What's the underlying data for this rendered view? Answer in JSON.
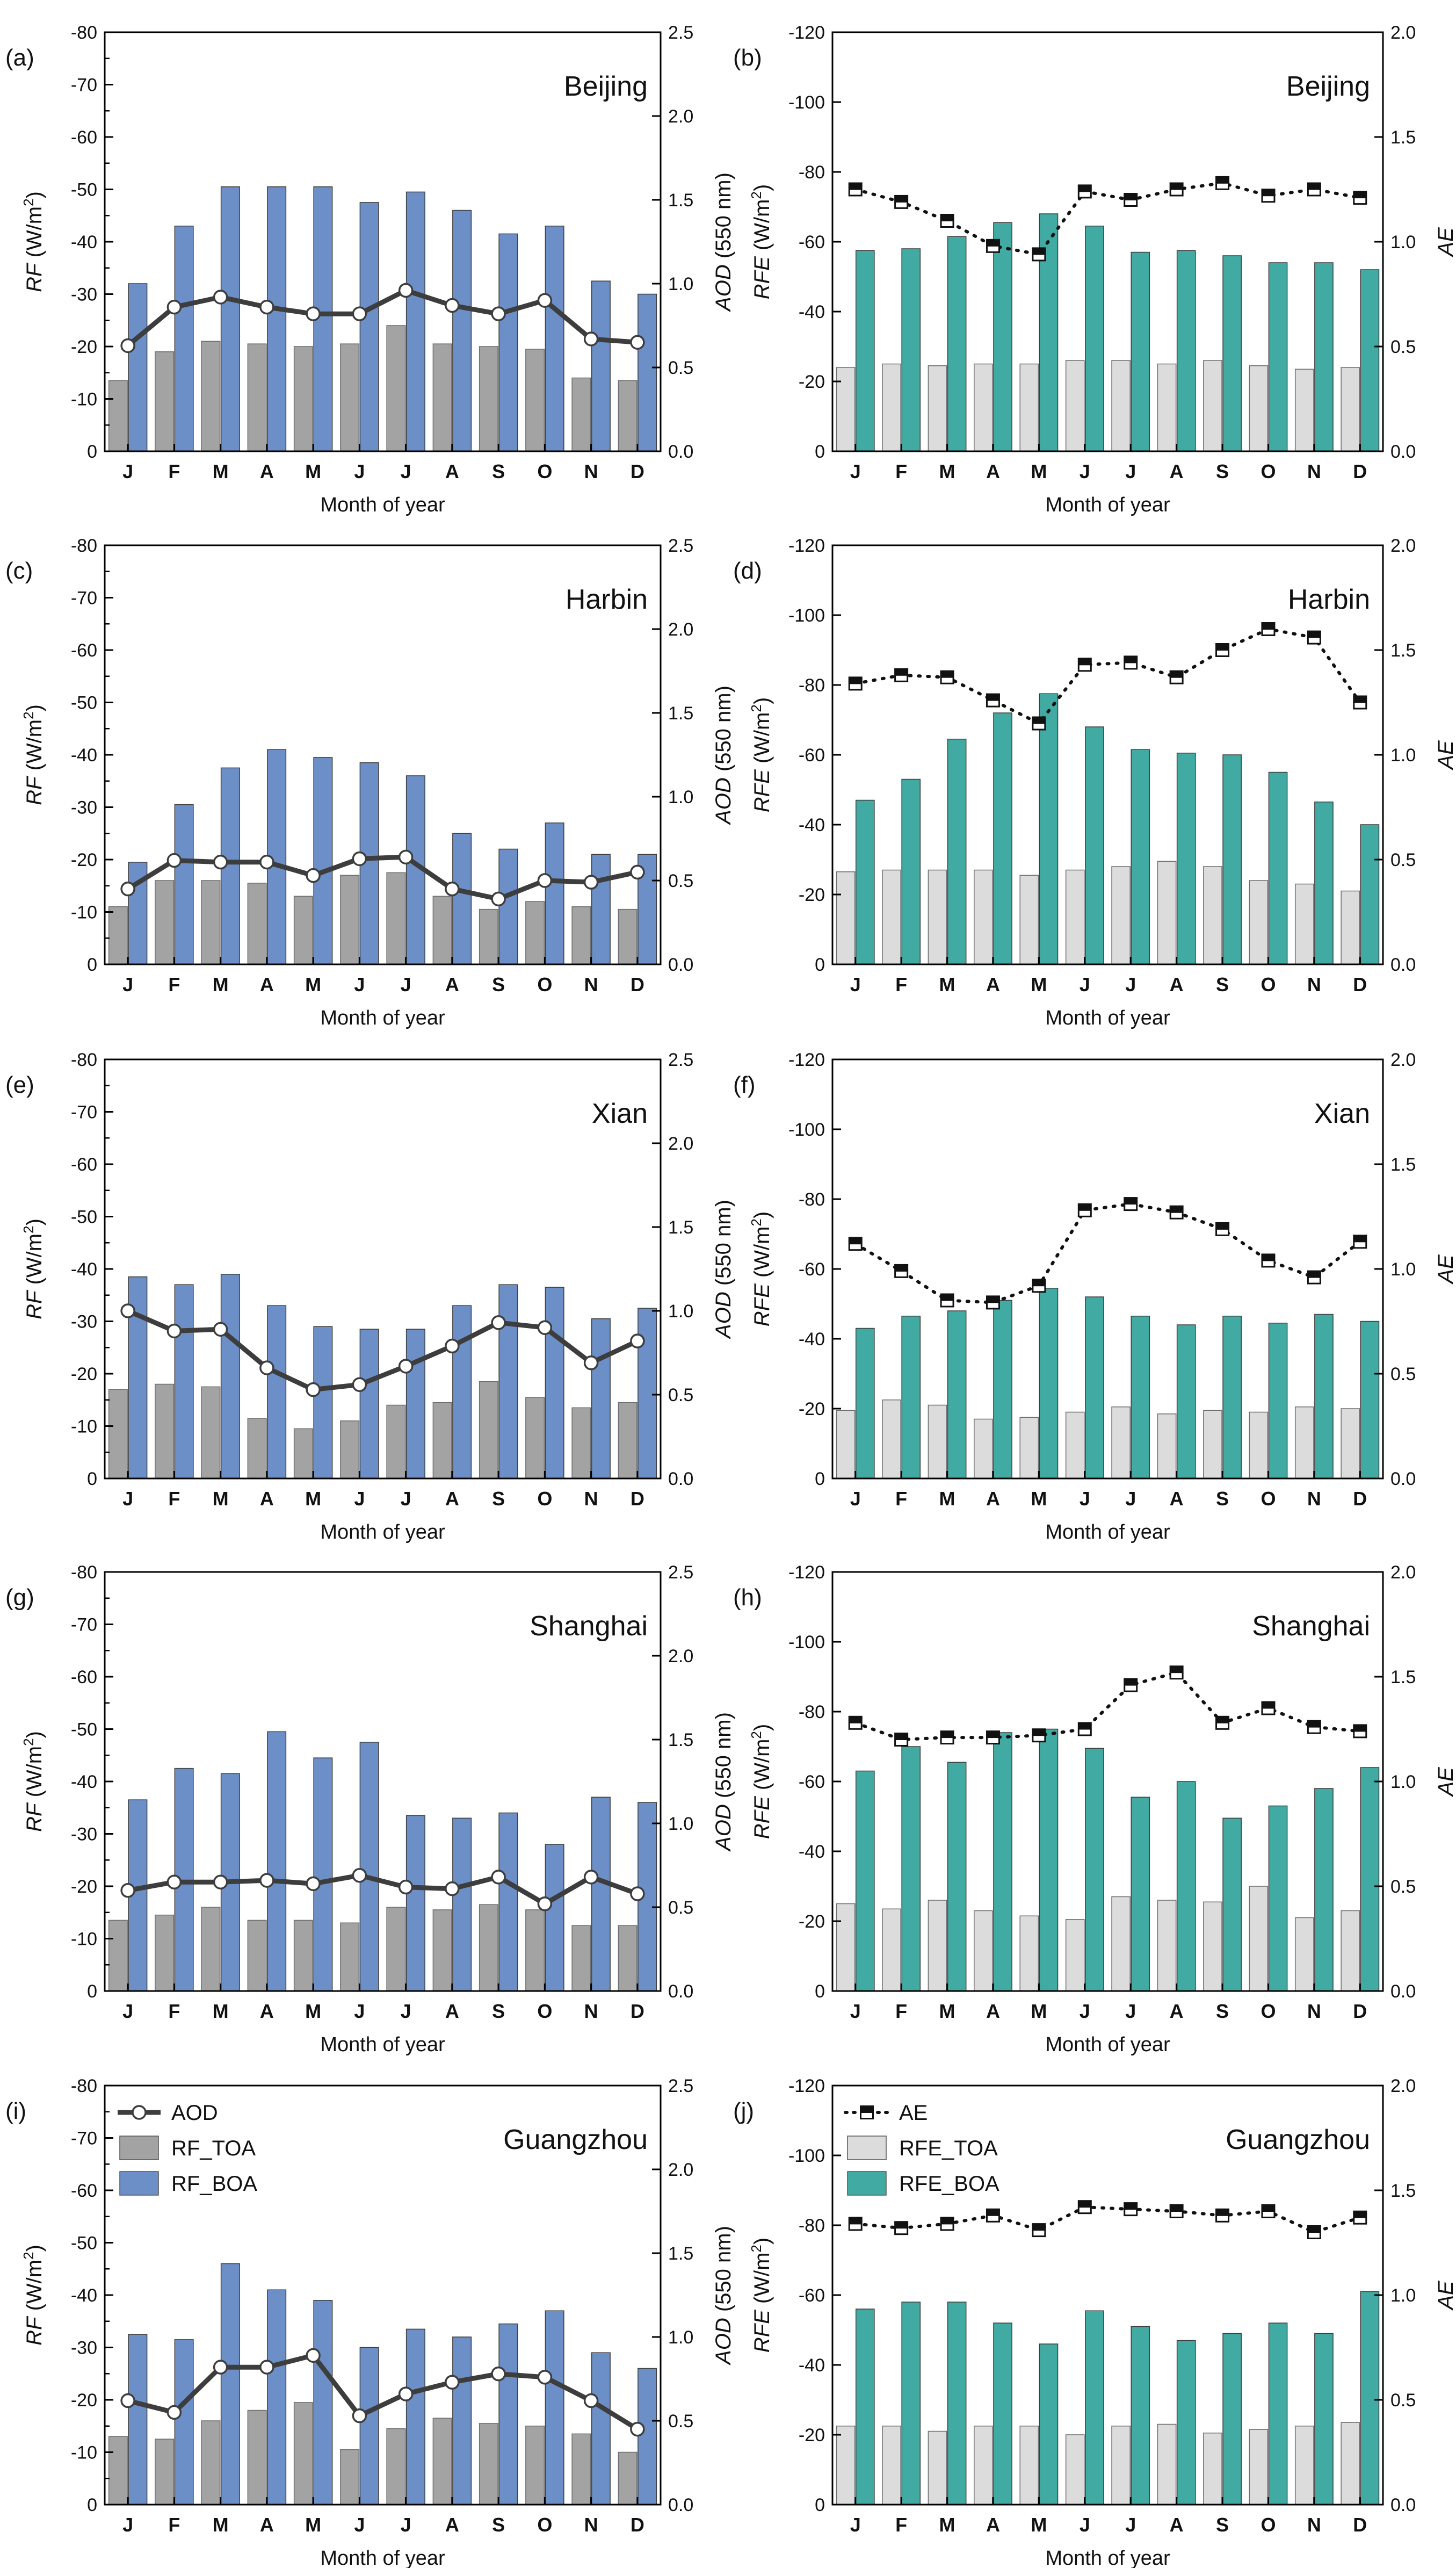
{
  "months": [
    "J",
    "F",
    "M",
    "A",
    "M",
    "J",
    "J",
    "A",
    "S",
    "O",
    "N",
    "D"
  ],
  "colors": {
    "rf_toa": "#a3a3a3",
    "rf_boa": "#6b8fc6",
    "rfe_toa": "#dcdcdc",
    "rfe_boa": "#41aaa2",
    "aod_line": "#3d3d3d",
    "ae_line": "#111111"
  },
  "legend_left": [
    {
      "key": "aod",
      "label": "AOD"
    },
    {
      "key": "toa",
      "label": "RF_TOA"
    },
    {
      "key": "boa",
      "label": "RF_BOA"
    }
  ],
  "legend_right": [
    {
      "key": "ae",
      "label": "AE"
    },
    {
      "key": "toa",
      "label": "RFE_TOA"
    },
    {
      "key": "boa",
      "label": "RFE_BOA"
    }
  ],
  "chart_data": [
    {
      "panel": "(a)",
      "city": "Beijing",
      "type": "bar",
      "xlabel": "Month of year",
      "ylabel": "RF (W/m²)",
      "y2label": "AOD (550 nm)",
      "ylim": [
        0,
        -80
      ],
      "yticks": [
        0,
        -10,
        -20,
        -30,
        -40,
        -50,
        -60,
        -70,
        -80
      ],
      "y2lim": [
        0,
        2.5
      ],
      "y2ticks": [
        "0.0",
        "0.5",
        "1.0",
        "1.5",
        "2.0",
        "2.5"
      ],
      "series": [
        {
          "name": "RF_TOA",
          "kind": "bar",
          "values": [
            -13.5,
            -19,
            -21,
            -20.5,
            -20,
            -20.5,
            -24,
            -20.5,
            -20,
            -19.5,
            -14,
            -13.5
          ]
        },
        {
          "name": "RF_BOA",
          "kind": "bar",
          "values": [
            -32,
            -43,
            -50.5,
            -50.5,
            -50.5,
            -47.5,
            -49.5,
            -46,
            -41.5,
            -43,
            -32.5,
            -30
          ]
        },
        {
          "name": "AOD",
          "kind": "line",
          "axis": "right",
          "values": [
            0.63,
            0.86,
            0.92,
            0.86,
            0.82,
            0.82,
            0.96,
            0.87,
            0.82,
            0.9,
            0.67,
            0.65
          ]
        }
      ]
    },
    {
      "panel": "(b)",
      "city": "Beijing",
      "type": "bar",
      "xlabel": "Month of year",
      "ylabel": "RFE (W/m²)",
      "y2label": "AE",
      "ylim": [
        0,
        -120
      ],
      "yticks": [
        0,
        -20,
        -40,
        -60,
        -80,
        -100,
        -120
      ],
      "y2lim": [
        0,
        2.0
      ],
      "y2ticks": [
        "0.0",
        "0.5",
        "1.0",
        "1.5",
        "2.0"
      ],
      "series": [
        {
          "name": "RFE_TOA",
          "kind": "bar",
          "values": [
            -24,
            -25,
            -24.5,
            -25,
            -25,
            -26,
            -26,
            -25,
            -26,
            -24.5,
            -23.5,
            -24
          ]
        },
        {
          "name": "RFE_BOA",
          "kind": "bar",
          "values": [
            -57.5,
            -58,
            -61.5,
            -65.5,
            -68,
            -64.5,
            -57,
            -57.5,
            -56,
            -54,
            -54,
            -52
          ]
        },
        {
          "name": "AE",
          "kind": "line",
          "axis": "right",
          "values": [
            1.25,
            1.19,
            1.1,
            0.98,
            0.94,
            1.24,
            1.2,
            1.25,
            1.28,
            1.22,
            1.25,
            1.21
          ]
        }
      ]
    },
    {
      "panel": "(c)",
      "city": "Harbin",
      "type": "bar",
      "xlabel": "Month of year",
      "ylabel": "RF (W/m²)",
      "y2label": "AOD (550 nm)",
      "ylim": [
        0,
        -80
      ],
      "yticks": [
        0,
        -10,
        -20,
        -30,
        -40,
        -50,
        -60,
        -70,
        -80
      ],
      "y2lim": [
        0,
        2.5
      ],
      "y2ticks": [
        "0.0",
        "0.5",
        "1.0",
        "1.5",
        "2.0",
        "2.5"
      ],
      "series": [
        {
          "name": "RF_TOA",
          "kind": "bar",
          "values": [
            -11,
            -16,
            -16,
            -15.5,
            -13,
            -17,
            -17.5,
            -13,
            -10.5,
            -12,
            -11,
            -10.5
          ]
        },
        {
          "name": "RF_BOA",
          "kind": "bar",
          "values": [
            -19.5,
            -30.5,
            -37.5,
            -41,
            -39.5,
            -38.5,
            -36,
            -25,
            -22,
            -27,
            -21,
            -21
          ]
        },
        {
          "name": "AOD",
          "kind": "line",
          "axis": "right",
          "values": [
            0.45,
            0.62,
            0.61,
            0.61,
            0.53,
            0.63,
            0.64,
            0.45,
            0.39,
            0.5,
            0.49,
            0.55
          ]
        }
      ]
    },
    {
      "panel": "(d)",
      "city": "Harbin",
      "type": "bar",
      "xlabel": "Month of year",
      "ylabel": "RFE (W/m²)",
      "y2label": "AE",
      "ylim": [
        0,
        -120
      ],
      "yticks": [
        0,
        -20,
        -40,
        -60,
        -80,
        -100,
        -120
      ],
      "y2lim": [
        0,
        2.0
      ],
      "y2ticks": [
        "0.0",
        "0.5",
        "1.0",
        "1.5",
        "2.0"
      ],
      "series": [
        {
          "name": "RFE_TOA",
          "kind": "bar",
          "values": [
            -26.5,
            -27,
            -27,
            -27,
            -25.5,
            -27,
            -28,
            -29.5,
            -28,
            -24,
            -23,
            -21
          ]
        },
        {
          "name": "RFE_BOA",
          "kind": "bar",
          "values": [
            -47,
            -53,
            -64.5,
            -72,
            -77.5,
            -68,
            -61.5,
            -60.5,
            -60,
            -55,
            -46.5,
            -40
          ]
        },
        {
          "name": "AE",
          "kind": "line",
          "axis": "right",
          "values": [
            1.34,
            1.38,
            1.37,
            1.26,
            1.15,
            1.43,
            1.44,
            1.37,
            1.5,
            1.6,
            1.56,
            1.25
          ]
        }
      ]
    },
    {
      "panel": "(e)",
      "city": "Xian",
      "type": "bar",
      "xlabel": "Month of year",
      "ylabel": "RF (W/m²)",
      "y2label": "AOD (550 nm)",
      "ylim": [
        0,
        -80
      ],
      "yticks": [
        0,
        -10,
        -20,
        -30,
        -40,
        -50,
        -60,
        -70,
        -80
      ],
      "y2lim": [
        0,
        2.5
      ],
      "y2ticks": [
        "0.0",
        "0.5",
        "1.0",
        "1.5",
        "2.0",
        "2.5"
      ],
      "series": [
        {
          "name": "RF_TOA",
          "kind": "bar",
          "values": [
            -17,
            -18,
            -17.5,
            -11.5,
            -9.5,
            -11,
            -14,
            -14.5,
            -18.5,
            -15.5,
            -13.5,
            -14.5
          ]
        },
        {
          "name": "RF_BOA",
          "kind": "bar",
          "values": [
            -38.5,
            -37,
            -39,
            -33,
            -29,
            -28.5,
            -28.5,
            -33,
            -37,
            -36.5,
            -30.5,
            -32.5
          ]
        },
        {
          "name": "AOD",
          "kind": "line",
          "axis": "right",
          "values": [
            1.0,
            0.88,
            0.89,
            0.66,
            0.53,
            0.56,
            0.67,
            0.79,
            0.93,
            0.9,
            0.69,
            0.82
          ]
        }
      ]
    },
    {
      "panel": "(f)",
      "city": "Xian",
      "type": "bar",
      "xlabel": "Month of year",
      "ylabel": "RFE (W/m²)",
      "y2label": "AE",
      "ylim": [
        0,
        -120
      ],
      "yticks": [
        0,
        -20,
        -40,
        -60,
        -80,
        -100,
        -120
      ],
      "y2lim": [
        0,
        2.0
      ],
      "y2ticks": [
        "0.0",
        "0.5",
        "1.0",
        "1.5",
        "2.0"
      ],
      "series": [
        {
          "name": "RFE_TOA",
          "kind": "bar",
          "values": [
            -19.5,
            -22.5,
            -21,
            -17,
            -17.5,
            -19,
            -20.5,
            -18.5,
            -19.5,
            -19,
            -20.5,
            -20
          ]
        },
        {
          "name": "RFE_BOA",
          "kind": "bar",
          "values": [
            -43,
            -46.5,
            -48,
            -51,
            -54.5,
            -52,
            -46.5,
            -44,
            -46.5,
            -44.5,
            -47,
            -45
          ]
        },
        {
          "name": "AE",
          "kind": "line",
          "axis": "right",
          "values": [
            1.12,
            0.99,
            0.85,
            0.84,
            0.92,
            1.28,
            1.31,
            1.27,
            1.19,
            1.04,
            0.96,
            1.13
          ]
        }
      ]
    },
    {
      "panel": "(g)",
      "city": "Shanghai",
      "type": "bar",
      "xlabel": "Month of year",
      "ylabel": "RF (W/m²)",
      "y2label": "AOD (550 nm)",
      "ylim": [
        0,
        -80
      ],
      "yticks": [
        0,
        -10,
        -20,
        -30,
        -40,
        -50,
        -60,
        -70,
        -80
      ],
      "y2lim": [
        0,
        2.5
      ],
      "y2ticks": [
        "0.0",
        "0.5",
        "1.0",
        "1.5",
        "2.0",
        "2.5"
      ],
      "series": [
        {
          "name": "RF_TOA",
          "kind": "bar",
          "values": [
            -13.5,
            -14.5,
            -16,
            -13.5,
            -13.5,
            -13,
            -16,
            -15.5,
            -16.5,
            -15.5,
            -12.5,
            -12.5
          ]
        },
        {
          "name": "RF_BOA",
          "kind": "bar",
          "values": [
            -36.5,
            -42.5,
            -41.5,
            -49.5,
            -44.5,
            -47.5,
            -33.5,
            -33,
            -34,
            -28,
            -37,
            -36
          ]
        },
        {
          "name": "AOD",
          "kind": "line",
          "axis": "right",
          "values": [
            0.6,
            0.65,
            0.65,
            0.66,
            0.64,
            0.69,
            0.62,
            0.61,
            0.68,
            0.52,
            0.68,
            0.58
          ]
        }
      ]
    },
    {
      "panel": "(h)",
      "city": "Shanghai",
      "type": "bar",
      "xlabel": "Month of year",
      "ylabel": "RFE (W/m²)",
      "y2label": "AE",
      "ylim": [
        0,
        -120
      ],
      "yticks": [
        0,
        -20,
        -40,
        -60,
        -80,
        -100,
        -120
      ],
      "y2lim": [
        0,
        2.0
      ],
      "y2ticks": [
        "0.0",
        "0.5",
        "1.0",
        "1.5",
        "2.0"
      ],
      "series": [
        {
          "name": "RFE_TOA",
          "kind": "bar",
          "values": [
            -25,
            -23.5,
            -26,
            -23,
            -21.5,
            -20.5,
            -27,
            -26,
            -25.5,
            -30,
            -21,
            -23
          ]
        },
        {
          "name": "RFE_BOA",
          "kind": "bar",
          "values": [
            -63,
            -70,
            -65.5,
            -74,
            -75,
            -69.5,
            -55.5,
            -60,
            -49.5,
            -53,
            -58,
            -64
          ]
        },
        {
          "name": "AE",
          "kind": "line",
          "axis": "right",
          "values": [
            1.28,
            1.2,
            1.21,
            1.21,
            1.22,
            1.25,
            1.46,
            1.52,
            1.28,
            1.35,
            1.26,
            1.24
          ]
        }
      ]
    },
    {
      "panel": "(i)",
      "city": "Guangzhou",
      "type": "bar",
      "xlabel": "Month of year",
      "ylabel": "RF (W/m²)",
      "y2label": "AOD (550 nm)",
      "ylim": [
        0,
        -80
      ],
      "yticks": [
        0,
        -10,
        -20,
        -30,
        -40,
        -50,
        -60,
        -70,
        -80
      ],
      "y2lim": [
        0,
        2.5
      ],
      "y2ticks": [
        "0.0",
        "0.5",
        "1.0",
        "1.5",
        "2.0",
        "2.5"
      ],
      "legend": "left",
      "series": [
        {
          "name": "RF_TOA",
          "kind": "bar",
          "values": [
            -13,
            -12.5,
            -16,
            -18,
            -19.5,
            -10.5,
            -14.5,
            -16.5,
            -15.5,
            -15,
            -13.5,
            -10
          ]
        },
        {
          "name": "RF_BOA",
          "kind": "bar",
          "values": [
            -32.5,
            -31.5,
            -46,
            -41,
            -39,
            -30,
            -33.5,
            -32,
            -34.5,
            -37,
            -29,
            -26
          ]
        },
        {
          "name": "AOD",
          "kind": "line",
          "axis": "right",
          "values": [
            0.62,
            0.55,
            0.82,
            0.82,
            0.89,
            0.53,
            0.66,
            0.73,
            0.78,
            0.76,
            0.62,
            0.45
          ]
        }
      ]
    },
    {
      "panel": "(j)",
      "city": "Guangzhou",
      "type": "bar",
      "xlabel": "Month of year",
      "ylabel": "RFE (W/m²)",
      "y2label": "AE",
      "ylim": [
        0,
        -120
      ],
      "yticks": [
        0,
        -20,
        -40,
        -60,
        -80,
        -100,
        -120
      ],
      "y2lim": [
        0,
        2.0
      ],
      "y2ticks": [
        "0.0",
        "0.5",
        "1.0",
        "1.5",
        "2.0"
      ],
      "legend": "left",
      "series": [
        {
          "name": "RFE_TOA",
          "kind": "bar",
          "values": [
            -22.5,
            -22.5,
            -21,
            -22.5,
            -22.5,
            -20,
            -22.5,
            -23,
            -20.5,
            -21.5,
            -22.5,
            -23.5
          ]
        },
        {
          "name": "RFE_BOA",
          "kind": "bar",
          "values": [
            -56,
            -58,
            -58,
            -52,
            -46,
            -55.5,
            -51,
            -47,
            -49,
            -52,
            -49,
            -61
          ]
        },
        {
          "name": "AE",
          "kind": "line",
          "axis": "right",
          "values": [
            1.34,
            1.32,
            1.34,
            1.38,
            1.31,
            1.42,
            1.41,
            1.4,
            1.38,
            1.4,
            1.3,
            1.37
          ]
        }
      ]
    }
  ]
}
